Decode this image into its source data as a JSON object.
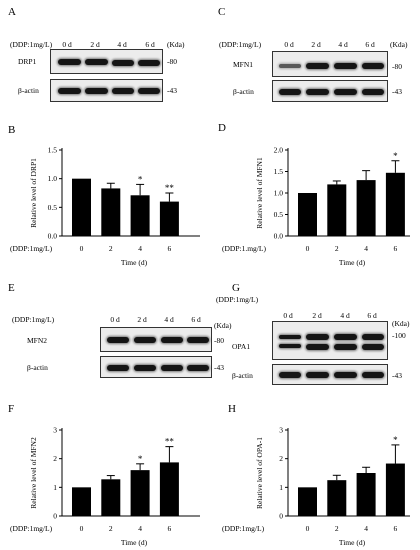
{
  "panels": {
    "A": {
      "letter": "A",
      "treatment": "(DDP:1mg/L)",
      "lanes": [
        "0 d",
        "2 d",
        "4 d",
        "6 d"
      ],
      "unit": "(Kda)",
      "rows": [
        {
          "protein": "DRP1",
          "mw": "-80"
        },
        {
          "protein": "β-actin",
          "mw": "-43"
        }
      ]
    },
    "C": {
      "letter": "C",
      "treatment": "(DDP:1mg/L)",
      "lanes": [
        "0 d",
        "2 d",
        "4 d",
        "6 d"
      ],
      "unit": "(Kda)",
      "rows": [
        {
          "protein": "MFN1",
          "mw": "-80"
        },
        {
          "protein": "β-actin",
          "mw": "-43"
        }
      ]
    },
    "E": {
      "letter": "E",
      "treatment": "(DDP:1mg/L)",
      "lanes": [
        "0 d",
        "2 d",
        "4 d",
        "6 d"
      ],
      "unit": "(Kda)",
      "rows": [
        {
          "protein": "MFN2",
          "mw": "-80"
        },
        {
          "protein": "β-actin",
          "mw": "-43"
        }
      ]
    },
    "G": {
      "letter": "G",
      "treatment": "(DDP:1mg/L)",
      "lanes": [
        "0 d",
        "2 d",
        "4 d",
        "6 d"
      ],
      "unit": "(Kda)",
      "rows": [
        {
          "protein": "OPA1",
          "mw": "-100"
        },
        {
          "protein": "β-actin",
          "mw": "-43"
        }
      ]
    }
  },
  "chart_data": [
    {
      "panel": "B",
      "type": "bar",
      "categories": [
        "0",
        "2",
        "4",
        "6"
      ],
      "values": [
        1.0,
        0.83,
        0.71,
        0.6
      ],
      "errors": [
        0,
        0.09,
        0.19,
        0.15
      ],
      "significance": [
        "",
        "",
        "*",
        "**"
      ],
      "ylabel": "Relative level of  DRP1",
      "xlabel": "Time (d)",
      "treatment": "(DDP:1mg/L)",
      "ylim": [
        0,
        1.5
      ],
      "yticks": [
        "0.0",
        "0.5",
        "1.0",
        "1.5"
      ],
      "color": "#000000"
    },
    {
      "panel": "D",
      "type": "bar",
      "categories": [
        "0",
        "2",
        "4",
        "6"
      ],
      "values": [
        1.0,
        1.2,
        1.3,
        1.47
      ],
      "errors": [
        0,
        0.08,
        0.22,
        0.28
      ],
      "significance": [
        "",
        "",
        "",
        "*"
      ],
      "ylabel": "Relative level of MFN1",
      "xlabel": "Time (d)",
      "treatment": "(DDP:1.mg/L)",
      "ylim": [
        0,
        2.0
      ],
      "yticks": [
        "0.0",
        "0.5",
        "1.0",
        "1.5",
        "2.0"
      ],
      "color": "#000000"
    },
    {
      "panel": "F",
      "type": "bar",
      "categories": [
        "0",
        "2",
        "4",
        "6"
      ],
      "values": [
        1.0,
        1.28,
        1.6,
        1.87
      ],
      "errors": [
        0,
        0.13,
        0.22,
        0.55
      ],
      "significance": [
        "",
        "",
        "*",
        "**"
      ],
      "ylabel": "Relative level of  MFN2",
      "xlabel": "Time (d)",
      "treatment": "(DDP:1mg/L)",
      "ylim": [
        0,
        3
      ],
      "yticks": [
        "0",
        "1",
        "2",
        "3"
      ],
      "color": "#000000"
    },
    {
      "panel": "H",
      "type": "bar",
      "categories": [
        "0",
        "2",
        "4",
        "6"
      ],
      "values": [
        1.0,
        1.25,
        1.5,
        1.83
      ],
      "errors": [
        0,
        0.17,
        0.2,
        0.65
      ],
      "significance": [
        "",
        "",
        "",
        "*"
      ],
      "ylabel": "Relative level of  OPA-1",
      "xlabel": "Time (d)",
      "treatment": "(DDP:1mg/L)",
      "ylim": [
        0,
        3
      ],
      "yticks": [
        "0",
        "1",
        "2",
        "3"
      ],
      "color": "#000000"
    }
  ]
}
